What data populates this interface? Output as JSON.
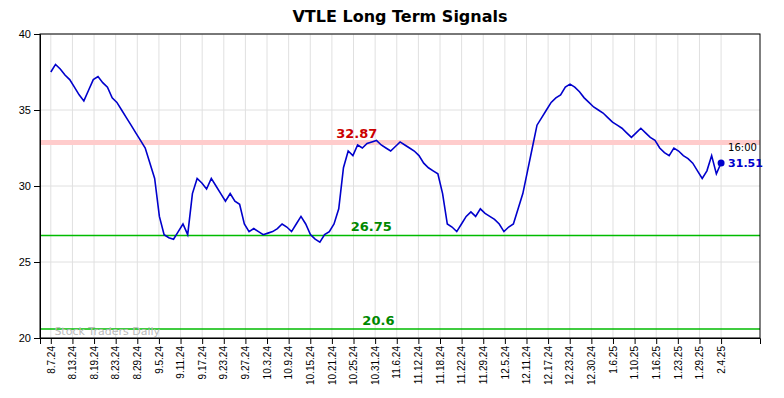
{
  "chart_data": {
    "type": "line",
    "title": "VTLE Long Term Signals",
    "color": "#0000cc",
    "grid": true,
    "xlim": [
      -0.5,
      32.8
    ],
    "xticks": [
      {
        "value": 0,
        "label": "8.7.24"
      },
      {
        "value": 1,
        "label": "8.13.24"
      },
      {
        "value": 2,
        "label": "8.19.24"
      },
      {
        "value": 3,
        "label": "8.23.24"
      },
      {
        "value": 4,
        "label": "8.29.24"
      },
      {
        "value": 5,
        "label": "9.5.24"
      },
      {
        "value": 6,
        "label": "9.11.24"
      },
      {
        "value": 7,
        "label": "9.17.24"
      },
      {
        "value": 8,
        "label": "9.23.24"
      },
      {
        "value": 9,
        "label": "9.27.24"
      },
      {
        "value": 10,
        "label": "10.3.24"
      },
      {
        "value": 11,
        "label": "10.9.24"
      },
      {
        "value": 12,
        "label": "10.15.24"
      },
      {
        "value": 13,
        "label": "10.21.24"
      },
      {
        "value": 14,
        "label": "10.25.24"
      },
      {
        "value": 15,
        "label": "10.31.24"
      },
      {
        "value": 16,
        "label": "11.6.24"
      },
      {
        "value": 17,
        "label": "11.12.24"
      },
      {
        "value": 18,
        "label": "11.18.24"
      },
      {
        "value": 19,
        "label": "11.22.24"
      },
      {
        "value": 20,
        "label": "11.29.24"
      },
      {
        "value": 21,
        "label": "12.5.24"
      },
      {
        "value": 22,
        "label": "12.11.24"
      },
      {
        "value": 23,
        "label": "12.17.24"
      },
      {
        "value": 24,
        "label": "12.23.24"
      },
      {
        "value": 25,
        "label": "12.30.24"
      },
      {
        "value": 26,
        "label": "1.6.25"
      },
      {
        "value": 27,
        "label": "1.10.25"
      },
      {
        "value": 28,
        "label": "1.16.25"
      },
      {
        "value": 29,
        "label": "1.23.25"
      },
      {
        "value": 30,
        "label": "1.29.25"
      },
      {
        "value": 31,
        "label": "2.4.25"
      }
    ],
    "ylim": [
      20,
      40
    ],
    "yticks": [
      20,
      25,
      30,
      35,
      40
    ],
    "x": [
      0,
      0.2183,
      0.4366,
      0.6549,
      0.8732,
      1.0915,
      1.3099,
      1.5282,
      1.7465,
      1.9648,
      2.1831,
      2.4014,
      2.6197,
      2.838,
      3.0563,
      3.2746,
      3.493,
      3.7113,
      3.9296,
      4.1479,
      4.3662,
      4.5845,
      4.8028,
      5.0211,
      5.2394,
      5.4577,
      5.6761,
      5.8944,
      6.1127,
      6.331,
      6.5493,
      6.7676,
      6.9859,
      7.2042,
      7.4225,
      7.6408,
      7.8592,
      8.0775,
      8.2958,
      8.5141,
      8.7324,
      8.9507,
      9.169,
      9.3873,
      9.6056,
      9.8239,
      10.0423,
      10.2606,
      10.4789,
      10.6972,
      10.9155,
      11.1338,
      11.3521,
      11.5704,
      11.7887,
      12.007,
      12.2254,
      12.4437,
      12.662,
      12.8803,
      13.0986,
      13.3169,
      13.5352,
      13.7535,
      13.9718,
      14.1901,
      14.4085,
      14.6268,
      14.8451,
      15.0634,
      15.2817,
      15.5,
      15.7183,
      15.9366,
      16.1549,
      16.3732,
      16.5915,
      16.8099,
      17.0282,
      17.2465,
      17.4648,
      17.6831,
      17.9014,
      18.1197,
      18.338,
      18.5563,
      18.7746,
      18.993,
      19.2113,
      19.4296,
      19.6479,
      19.8662,
      20.0845,
      20.3028,
      20.5211,
      20.7394,
      20.9577,
      21.1761,
      21.3944,
      21.6127,
      21.831,
      22.0493,
      22.2676,
      22.4859,
      22.7042,
      22.9225,
      23.1408,
      23.3592,
      23.5775,
      23.7958,
      24.0141,
      24.2324,
      24.4507,
      24.669,
      24.8873,
      25.1056,
      25.3239,
      25.5423,
      25.7606,
      25.9789,
      26.1972,
      26.4155,
      26.6338,
      26.8521,
      27.0704,
      27.2887,
      27.507,
      27.7254,
      27.9437,
      28.162,
      28.3803,
      28.5986,
      28.8169,
      29.0352,
      29.2535,
      29.4718,
      29.6901,
      29.9085,
      30.1268,
      30.3451,
      30.5634,
      30.7817,
      31
    ],
    "values": [
      37.5,
      38.0,
      37.7,
      37.3,
      37.0,
      36.5,
      36.0,
      35.6,
      36.3,
      37.0,
      37.2,
      36.8,
      36.5,
      35.8,
      35.5,
      35.0,
      34.5,
      34.0,
      33.5,
      33.0,
      32.5,
      31.5,
      30.5,
      28.0,
      26.8,
      26.6,
      26.5,
      27.0,
      27.5,
      26.8,
      29.5,
      30.5,
      30.2,
      29.8,
      30.5,
      30.0,
      29.5,
      29.0,
      29.5,
      29.0,
      28.8,
      27.5,
      27.0,
      27.2,
      27.0,
      26.8,
      26.9,
      27.0,
      27.2,
      27.5,
      27.3,
      27.0,
      27.5,
      28.0,
      27.5,
      26.8,
      26.5,
      26.3,
      26.8,
      27.0,
      27.5,
      28.5,
      31.2,
      32.3,
      32.0,
      32.7,
      32.5,
      32.8,
      32.9,
      33.0,
      32.7,
      32.5,
      32.3,
      32.6,
      32.9,
      32.7,
      32.5,
      32.3,
      32.0,
      31.5,
      31.2,
      31.0,
      30.8,
      29.5,
      27.5,
      27.3,
      27.0,
      27.5,
      28.0,
      28.3,
      28.0,
      28.5,
      28.2,
      28.0,
      27.8,
      27.5,
      27.0,
      27.3,
      27.5,
      28.5,
      29.5,
      31.0,
      32.5,
      34.0,
      34.5,
      35.0,
      35.5,
      35.8,
      36.0,
      36.5,
      36.7,
      36.5,
      36.2,
      35.8,
      35.5,
      35.2,
      35.0,
      34.8,
      34.5,
      34.2,
      34.0,
      33.8,
      33.5,
      33.2,
      33.5,
      33.8,
      33.5,
      33.2,
      33.0,
      32.5,
      32.2,
      32.0,
      32.5,
      32.3,
      32.0,
      31.8,
      31.5,
      31.0,
      30.5,
      31.0,
      32.0,
      30.8,
      31.51
    ],
    "hlines": [
      {
        "value": 32.87,
        "color": "#ffcccc",
        "label": "32.87",
        "label_color": "#cc0000"
      },
      {
        "value": 26.75,
        "color": "#00bb00",
        "label": "26.75",
        "label_color": "#008800"
      },
      {
        "value": 20.6,
        "color": "#00bb00",
        "label": "20.6",
        "label_color": "#008800"
      }
    ],
    "annotations": [
      {
        "text": "16:00",
        "color": "#000000"
      },
      {
        "text": "31.51",
        "color": "#0000cc"
      }
    ],
    "watermark": {
      "text": "Stock Traders Daily",
      "color": "#bbbbbb"
    }
  }
}
